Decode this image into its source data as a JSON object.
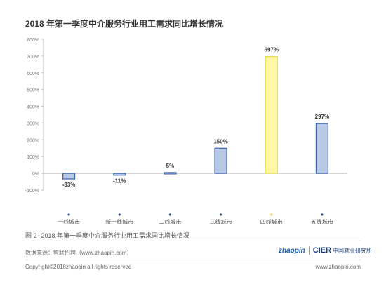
{
  "title": "2018 年第一季度中介服务行业用工需求同比增长情况",
  "caption": "图 2--2018 年第一季度中介服务行业用工需求同比增长情况",
  "source": "数据来源：智联招聘（www.zhaopin.com）",
  "copyright": "Copyright©2018zhaopin all rights reserved",
  "website": "www.zhaopin.com",
  "logo_zhaopin": "zhaopin",
  "logo_cier": "CIER",
  "logo_cier_cn": "中国就业研究所",
  "colors": {
    "bar_fill": "#b7c9e4",
    "bar_stroke": "#3e64a8",
    "highlight_fill": "#fdf7a6",
    "highlight_stroke": "#e8dc57",
    "axis": "#bfbfbf",
    "dot": "#2f4f86",
    "dot_highlight": "#e8dc57"
  },
  "chart_data": {
    "type": "bar",
    "title": "2018 年第一季度中介服务行业用工需求同比增长情况",
    "categories": [
      "一线城市",
      "新一线城市",
      "二线城市",
      "三线城市",
      "四线城市",
      "五线城市"
    ],
    "values": [
      -33,
      -11,
      5,
      150,
      697,
      297
    ],
    "labels": [
      "-33%",
      "-11%",
      "5%",
      "150%",
      "697%",
      "297%"
    ],
    "highlight_index": 4,
    "yticks": [
      "800%",
      "700%",
      "600%",
      "500%",
      "400%",
      "300%",
      "200%",
      "100%",
      "0%",
      "-100%"
    ],
    "ytick_values": [
      800,
      700,
      600,
      500,
      400,
      300,
      200,
      100,
      0,
      -100
    ],
    "ylim": [
      -100,
      800
    ],
    "xlabel": "",
    "ylabel": "",
    "grid": false,
    "legend": "none"
  }
}
